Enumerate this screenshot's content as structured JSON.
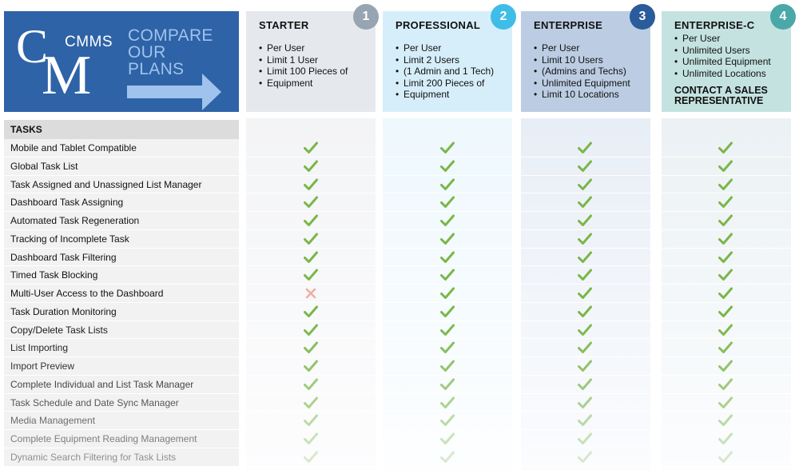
{
  "logo": {
    "letter_c": "C",
    "letter_m": "M",
    "cmms": "CMMS",
    "compare_lines": [
      "COMPARE",
      "OUR",
      "PLANS"
    ]
  },
  "colors": {
    "brand_blue": "#2e63a7",
    "check_green": "#7ab648",
    "cross_red": "#e8735a",
    "badge1": "#97a4b1",
    "badge2": "#3fbde7",
    "badge3": "#2a5b9a",
    "badge4": "#4aa8a9"
  },
  "plans": [
    {
      "badge": "1",
      "name": "STARTER",
      "features": [
        "Per User",
        "Limit 1 User",
        "Limit 100 Pieces of",
        "Equipment"
      ],
      "cta": ""
    },
    {
      "badge": "2",
      "name": "PROFESSIONAL",
      "features": [
        "Per User",
        "Limit 2 Users",
        "(1 Admin and 1 Tech)",
        "Limit 200 Pieces of",
        "Equipment"
      ],
      "cta": ""
    },
    {
      "badge": "3",
      "name": "ENTERPRISE",
      "features": [
        "Per User",
        "Limit 10 Users",
        "(Admins and Techs)",
        "Unlimited Equipment",
        "Limit 10 Locations"
      ],
      "cta": ""
    },
    {
      "badge": "4",
      "name": "ENTERPRISE-C",
      "features": [
        "Per User",
        "Unlimited Users",
        "Unlimited Equipment",
        "Unlimited Locations"
      ],
      "cta_lines": [
        "CONTACT A SALES",
        "REPRESENTATIVE"
      ]
    }
  ],
  "section": {
    "title": "TASKS"
  },
  "rows": [
    {
      "label": "Mobile and Tablet Compatible",
      "marks": [
        "check",
        "check",
        "check",
        "check"
      ],
      "fade": 1.0
    },
    {
      "label": "Global Task List",
      "marks": [
        "check",
        "check",
        "check",
        "check"
      ],
      "fade": 1.0
    },
    {
      "label": "Task Assigned and Unassigned List Manager",
      "marks": [
        "check",
        "check",
        "check",
        "check"
      ],
      "fade": 1.0
    },
    {
      "label": "Dashboard Task Assigning",
      "marks": [
        "check",
        "check",
        "check",
        "check"
      ],
      "fade": 1.0
    },
    {
      "label": "Automated Task Regeneration",
      "marks": [
        "check",
        "check",
        "check",
        "check"
      ],
      "fade": 1.0
    },
    {
      "label": "Tracking of Incomplete Task",
      "marks": [
        "check",
        "check",
        "check",
        "check"
      ],
      "fade": 1.0
    },
    {
      "label": "Dashboard Task Filtering",
      "marks": [
        "check",
        "check",
        "check",
        "check"
      ],
      "fade": 1.0
    },
    {
      "label": "Timed Task Blocking",
      "marks": [
        "check",
        "check",
        "check",
        "check"
      ],
      "fade": 1.0
    },
    {
      "label": "Multi-User Access to the Dashboard",
      "marks": [
        "cross",
        "check",
        "check",
        "check"
      ],
      "fade": 1.0
    },
    {
      "label": "Task Duration Monitoring",
      "marks": [
        "check",
        "check",
        "check",
        "check"
      ],
      "fade": 1.0
    },
    {
      "label": "Copy/Delete Task Lists",
      "marks": [
        "check",
        "check",
        "check",
        "check"
      ],
      "fade": 0.95
    },
    {
      "label": "List Importing",
      "marks": [
        "check",
        "check",
        "check",
        "check"
      ],
      "fade": 0.88
    },
    {
      "label": "Import Preview",
      "marks": [
        "check",
        "check",
        "check",
        "check"
      ],
      "fade": 0.8
    },
    {
      "label": "Complete Individual and List Task Manager",
      "marks": [
        "check",
        "check",
        "check",
        "check"
      ],
      "fade": 0.7
    },
    {
      "label": "Task Schedule and Date Sync Manager",
      "marks": [
        "check",
        "check",
        "check",
        "check"
      ],
      "fade": 0.6
    },
    {
      "label": "Media Management",
      "marks": [
        "check",
        "check",
        "check",
        "check"
      ],
      "fade": 0.48
    },
    {
      "label": "Complete Equipment Reading Management",
      "marks": [
        "check",
        "check",
        "check",
        "check"
      ],
      "fade": 0.38
    },
    {
      "label": "Dynamic Search Filtering for Task Lists",
      "marks": [
        "check",
        "check",
        "check",
        "check"
      ],
      "fade": 0.28
    }
  ]
}
